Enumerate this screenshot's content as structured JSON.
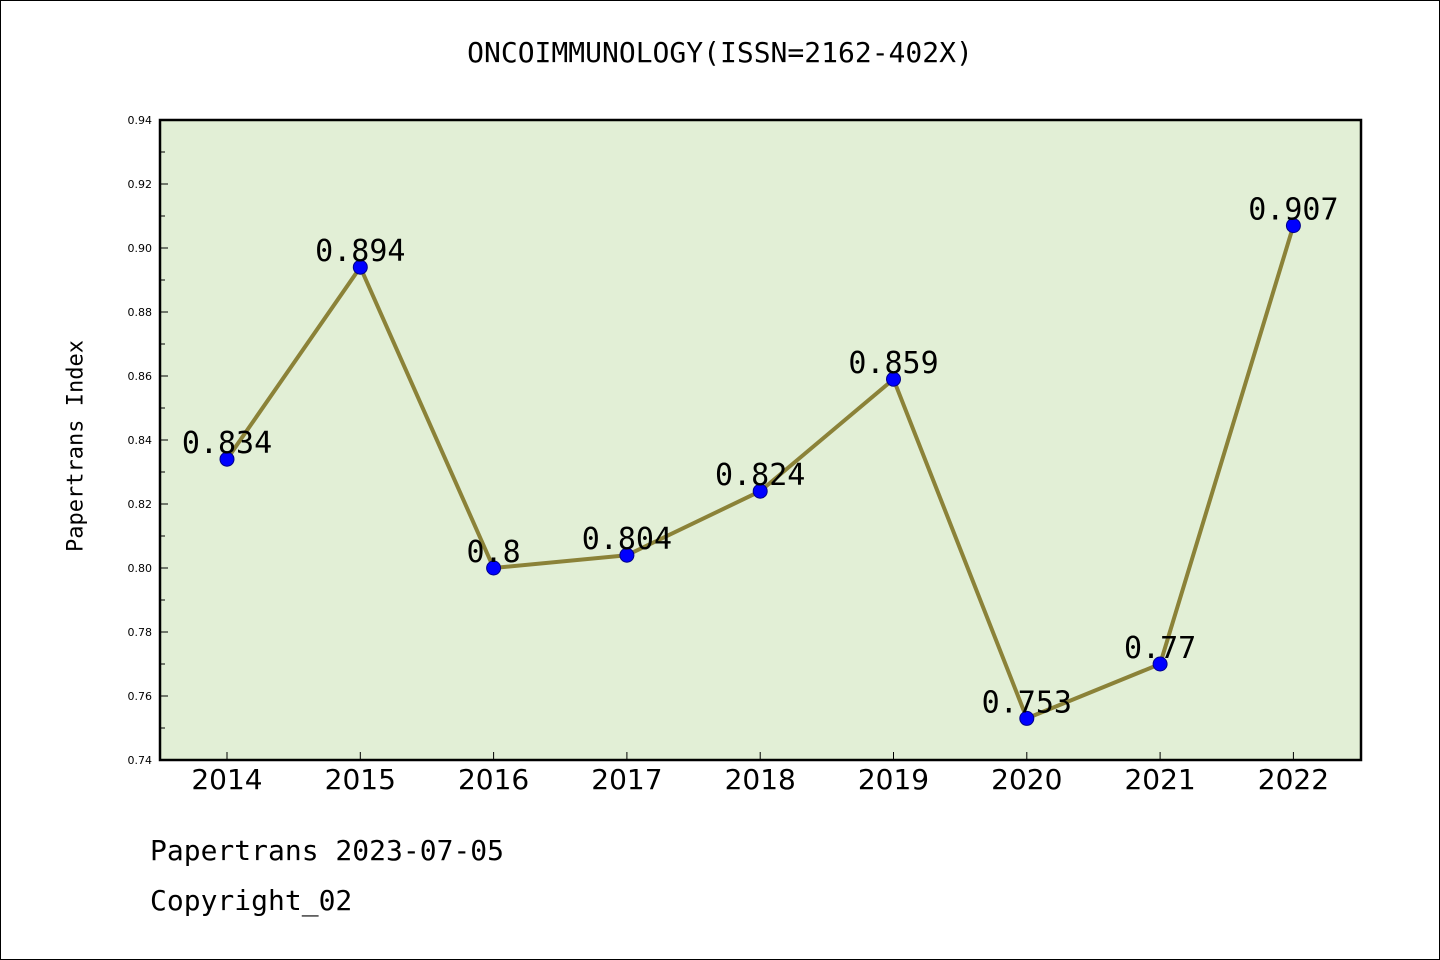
{
  "chart_data": {
    "type": "line",
    "title": "ONCOIMMUNOLOGY(ISSN=2162-402X)",
    "xlabel": "",
    "ylabel": "Papertrans Index",
    "categories": [
      "2014",
      "2015",
      "2016",
      "2017",
      "2018",
      "2019",
      "2020",
      "2021",
      "2022"
    ],
    "series": [
      {
        "values": [
          0.834,
          0.894,
          0.8,
          0.804,
          0.824,
          0.859,
          0.753,
          0.77,
          0.907
        ]
      }
    ],
    "data_labels": [
      "0.834",
      "0.894",
      "0.8",
      "0.804",
      "0.824",
      "0.859",
      "0.753",
      "0.77",
      "0.907"
    ],
    "ylim": [
      0.74,
      0.94
    ],
    "yticks": [
      "0.74",
      "0.76",
      "0.78",
      "0.80",
      "0.82",
      "0.84",
      "0.86",
      "0.88",
      "0.90",
      "0.92",
      "0.94"
    ],
    "grid": false,
    "colors": {
      "plot_background": "#e2efd6",
      "line": "#8b8238",
      "marker": "#0000ff"
    }
  },
  "footer": {
    "line1": "Papertrans 2023-07-05",
    "line2": "Copyright_02"
  }
}
